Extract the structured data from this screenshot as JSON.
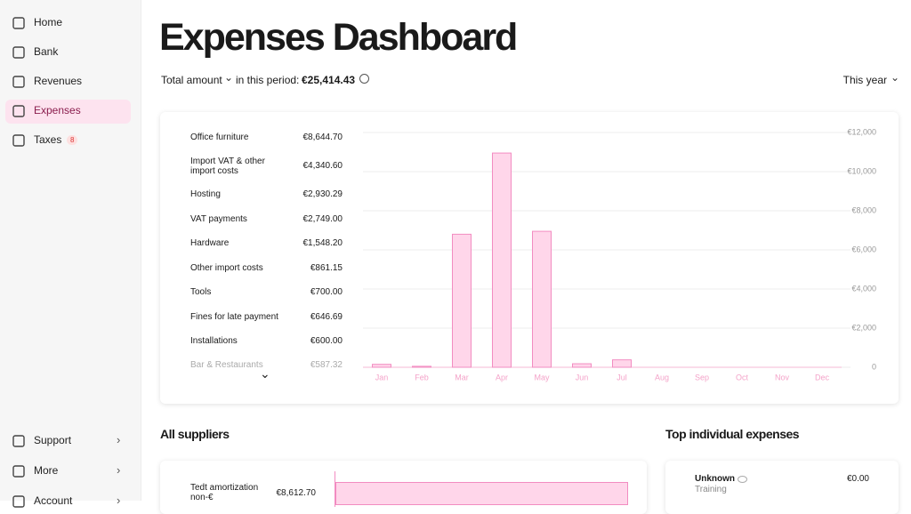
{
  "sidebar": {
    "nav": [
      {
        "label": "Home"
      },
      {
        "label": "Bank"
      },
      {
        "label": "Revenues"
      },
      {
        "label": "Expenses",
        "active": true
      },
      {
        "label": "Taxes",
        "badge": 8
      }
    ],
    "bottom": [
      {
        "label": "Support"
      },
      {
        "label": "More"
      },
      {
        "label": "Account"
      }
    ]
  },
  "header": {
    "title": "Expenses Dashboard",
    "metric": "Total amount",
    "period_text": "in this period:",
    "total": "€25,414.43",
    "period": "This year"
  },
  "breakdown": [
    {
      "name": "Office furniture",
      "amount": "€8,644.70"
    },
    {
      "name": "Import VAT & other import costs",
      "amount": "€4,340.60"
    },
    {
      "name": "Hosting",
      "amount": "€2,930.29"
    },
    {
      "name": "VAT payments",
      "amount": "€2,749.00"
    },
    {
      "name": "Hardware",
      "amount": "€1,548.20"
    },
    {
      "name": "Other import costs",
      "amount": "€861.15"
    },
    {
      "name": "Tools",
      "amount": "€700.00"
    },
    {
      "name": "Fines for late payment",
      "amount": "€646.69"
    },
    {
      "name": "Installations",
      "amount": "€600.00"
    },
    {
      "name": "Bar & Restaurants",
      "amount": "€587.32"
    }
  ],
  "chart": {
    "type": "bar",
    "categories": [
      "Jan",
      "Feb",
      "Mar",
      "Apr",
      "May",
      "Jun",
      "Jul",
      "Aug",
      "Sep",
      "Oct",
      "Nov",
      "Dec"
    ],
    "values": [
      150,
      50,
      6800,
      10950,
      6950,
      180,
      380,
      0,
      0,
      0,
      0,
      0
    ],
    "ylim": [
      0,
      12000
    ],
    "yticks": [
      0,
      {
        "value": 2000,
        "label": "€2,000"
      },
      {
        "value": 4000,
        "label": "€4,000"
      },
      {
        "value": 6000,
        "label": "€6,000"
      },
      {
        "value": 8000,
        "label": "€8,000"
      },
      {
        "value": 10000,
        "label": "€10,000"
      },
      {
        "value": 12000,
        "label": "€12,000"
      }
    ],
    "color": "#ffd6ea",
    "grid": true
  },
  "suppliers": {
    "title": "All suppliers",
    "rows": [
      {
        "name": "Tedt amortization non-€",
        "amount": "€8,612.70",
        "value": 8612.7
      }
    ]
  },
  "top_expenses": {
    "title": "Top individual expenses",
    "rows": [
      {
        "name": "Unknown",
        "category": "Training",
        "amount": "€0.00"
      }
    ]
  }
}
